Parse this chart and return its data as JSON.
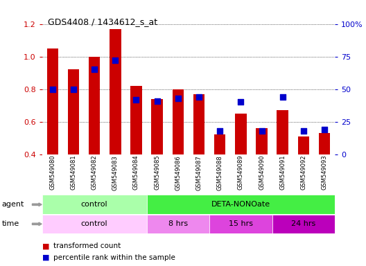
{
  "title": "GDS4408 / 1434612_s_at",
  "samples": [
    "GSM549080",
    "GSM549081",
    "GSM549082",
    "GSM549083",
    "GSM549084",
    "GSM549085",
    "GSM549086",
    "GSM549087",
    "GSM549088",
    "GSM549089",
    "GSM549090",
    "GSM549091",
    "GSM549092",
    "GSM549093"
  ],
  "transformed_count": [
    1.05,
    0.92,
    1.0,
    1.17,
    0.82,
    0.74,
    0.8,
    0.77,
    0.52,
    0.65,
    0.56,
    0.67,
    0.51,
    0.53
  ],
  "percentile_rank_pct": [
    50,
    50,
    65,
    72,
    42,
    41,
    43,
    44,
    18,
    40,
    18,
    44,
    18,
    19
  ],
  "ylim_left": [
    0.4,
    1.2
  ],
  "ylim_right": [
    0,
    100
  ],
  "yticks_left": [
    0.4,
    0.6,
    0.8,
    1.0,
    1.2
  ],
  "yticks_right": [
    0,
    25,
    50,
    75,
    100
  ],
  "ytick_labels_right": [
    "0",
    "25",
    "50",
    "75",
    "100%"
  ],
  "bar_color": "#cc0000",
  "dot_color": "#0000cc",
  "bar_width": 0.55,
  "dot_size": 30,
  "agent_groups": [
    {
      "label": "control",
      "start": 0,
      "end": 4,
      "color": "#aaffaa"
    },
    {
      "label": "DETA-NONOate",
      "start": 5,
      "end": 13,
      "color": "#44ee44"
    }
  ],
  "time_groups": [
    {
      "label": "control",
      "start": 0,
      "end": 4,
      "color": "#ffccff"
    },
    {
      "label": "8 hrs",
      "start": 5,
      "end": 7,
      "color": "#ee88ee"
    },
    {
      "label": "15 hrs",
      "start": 8,
      "end": 10,
      "color": "#dd44dd"
    },
    {
      "label": "24 hrs",
      "start": 11,
      "end": 13,
      "color": "#cc22cc"
    }
  ],
  "legend_bar_label": "transformed count",
  "legend_dot_label": "percentile rank within the sample",
  "bg_color": "#ffffff",
  "grid_color": "#000000",
  "tick_label_color_left": "#cc0000",
  "tick_label_color_right": "#0000cc",
  "xticklabel_bg": "#dddddd"
}
